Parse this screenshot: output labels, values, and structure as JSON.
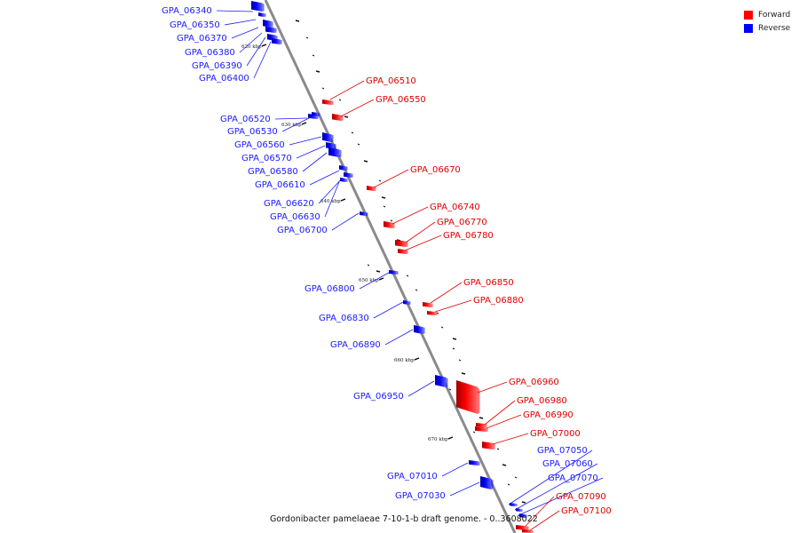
{
  "legend": [
    {
      "label": "Forward",
      "color": "#ff0000"
    },
    {
      "label": "Reverse",
      "color": "#0000ff"
    }
  ],
  "caption": "Gordonibacter pamelaeae 7-10-1-b draft genome. - 0..3608022",
  "ticks": [
    "620 kbp",
    "630 kbp",
    "640 kbp",
    "650 kbp",
    "660 kbp",
    "670 kbp"
  ],
  "reverse_genes": [
    "GPA_06340",
    "GPA_06350",
    "GPA_06370",
    "GPA_06380",
    "GPA_06390",
    "GPA_06400",
    "GPA_06520",
    "GPA_06530",
    "GPA_06560",
    "GPA_06570",
    "GPA_06580",
    "GPA_06610",
    "GPA_06620",
    "GPA_06630",
    "GPA_06700",
    "GPA_06800",
    "GPA_06830",
    "GPA_06890",
    "GPA_06950",
    "GPA_07010",
    "GPA_07030",
    "GPA_07050",
    "GPA_07060",
    "GPA_07070"
  ],
  "forward_genes": [
    "GPA_06510",
    "GPA_06550",
    "GPA_06670",
    "GPA_06740",
    "GPA_06770",
    "GPA_06780",
    "GPA_06850",
    "GPA_06880",
    "GPA_06960",
    "GPA_06980",
    "GPA_06990",
    "GPA_07000",
    "GPA_07090",
    "GPA_07100"
  ]
}
